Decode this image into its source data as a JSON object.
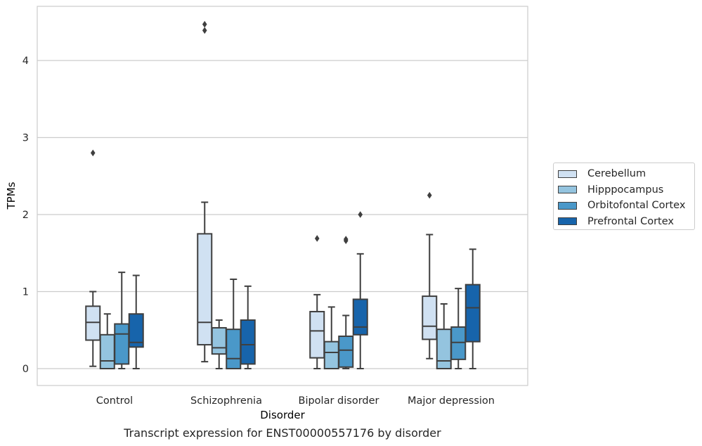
{
  "caption": "Transcript expression for ENST00000557176 by disorder",
  "chart_data": {
    "type": "box",
    "xlabel": "Disorder",
    "ylabel": "TPMs",
    "ylim": [
      -0.22,
      4.7
    ],
    "yticks": [
      0,
      1,
      2,
      3,
      4
    ],
    "grid": "horizontal",
    "legend_position": "right",
    "categories": [
      "Control",
      "Schizophrenia",
      "Bipolar disorder",
      "Major depression"
    ],
    "series": [
      {
        "name": "Cerebellum",
        "color": "#d0e1f2",
        "boxes": [
          {
            "whislo": 0.03,
            "q1": 0.37,
            "med": 0.6,
            "q3": 0.81,
            "whishi": 1.0,
            "fliers": [
              2.8
            ]
          },
          {
            "whislo": 0.09,
            "q1": 0.31,
            "med": 0.6,
            "q3": 1.75,
            "whishi": 2.16,
            "fliers": [
              4.39,
              4.47
            ]
          },
          {
            "whislo": 0.0,
            "q1": 0.14,
            "med": 0.49,
            "q3": 0.74,
            "whishi": 0.96,
            "fliers": [
              1.69
            ]
          },
          {
            "whislo": 0.13,
            "q1": 0.38,
            "med": 0.55,
            "q3": 0.94,
            "whishi": 1.74,
            "fliers": [
              2.25
            ]
          }
        ]
      },
      {
        "name": "Hipppocampus",
        "color": "#94c4df",
        "boxes": [
          {
            "whislo": 0.0,
            "q1": 0.0,
            "med": 0.1,
            "q3": 0.44,
            "whishi": 0.71,
            "fliers": []
          },
          {
            "whislo": 0.0,
            "q1": 0.19,
            "med": 0.27,
            "q3": 0.53,
            "whishi": 0.63,
            "fliers": []
          },
          {
            "whislo": 0.0,
            "q1": 0.0,
            "med": 0.21,
            "q3": 0.35,
            "whishi": 0.8,
            "fliers": []
          },
          {
            "whislo": 0.0,
            "q1": 0.0,
            "med": 0.1,
            "q3": 0.51,
            "whishi": 0.84,
            "fliers": []
          }
        ]
      },
      {
        "name": "Orbitofontal Cortex",
        "color": "#4a98c9",
        "boxes": [
          {
            "whislo": 0.0,
            "q1": 0.06,
            "med": 0.45,
            "q3": 0.58,
            "whishi": 1.25,
            "fliers": []
          },
          {
            "whislo": 0.0,
            "q1": 0.0,
            "med": 0.13,
            "q3": 0.51,
            "whishi": 1.16,
            "fliers": []
          },
          {
            "whislo": 0.0,
            "q1": 0.02,
            "med": 0.24,
            "q3": 0.42,
            "whishi": 0.69,
            "fliers": [
              1.66,
              1.68
            ]
          },
          {
            "whislo": 0.0,
            "q1": 0.12,
            "med": 0.34,
            "q3": 0.54,
            "whishi": 1.04,
            "fliers": []
          }
        ]
      },
      {
        "name": "Prefrontal Cortex",
        "color": "#1764ab",
        "boxes": [
          {
            "whislo": 0.0,
            "q1": 0.28,
            "med": 0.34,
            "q3": 0.71,
            "whishi": 1.21,
            "fliers": []
          },
          {
            "whislo": 0.0,
            "q1": 0.06,
            "med": 0.31,
            "q3": 0.63,
            "whishi": 1.07,
            "fliers": []
          },
          {
            "whislo": 0.0,
            "q1": 0.44,
            "med": 0.54,
            "q3": 0.9,
            "whishi": 1.49,
            "fliers": [
              2.0
            ]
          },
          {
            "whislo": 0.0,
            "q1": 0.35,
            "med": 0.79,
            "q3": 1.09,
            "whishi": 1.55,
            "fliers": []
          }
        ]
      }
    ]
  }
}
